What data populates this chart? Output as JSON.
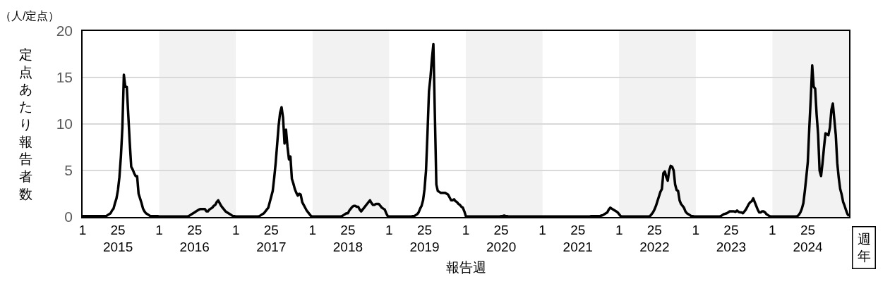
{
  "chart_data": {
    "type": "line",
    "xlabel": "報告週",
    "ylabel": "定点あたり報告者数",
    "annotations": [
      "（人/定点）",
      "週年"
    ],
    "categories": [
      "1",
      null,
      null,
      null,
      null,
      null,
      null,
      null,
      null,
      null,
      null,
      null,
      null,
      null,
      null,
      null,
      null,
      null,
      null,
      null,
      null,
      null,
      null,
      null,
      "25\n2015",
      null,
      null,
      null,
      null,
      null,
      null,
      null,
      null,
      null,
      null,
      null,
      null,
      null,
      null,
      null,
      null,
      null,
      null,
      null,
      null,
      null,
      null,
      null,
      null,
      null,
      null,
      null,
      "1",
      null,
      null,
      null,
      null,
      null,
      null,
      null,
      null,
      null,
      null,
      null,
      null,
      null,
      null,
      null,
      null,
      null,
      null,
      null,
      null,
      null,
      null,
      null,
      "25\n2016",
      null,
      null,
      null,
      null,
      null,
      null,
      null,
      null,
      null,
      null,
      null,
      null,
      null,
      null,
      null,
      null,
      null,
      null,
      null,
      null,
      null,
      null,
      null,
      null,
      null,
      null,
      null,
      "1",
      null,
      null,
      null,
      null,
      null,
      null,
      null,
      null,
      null,
      null,
      null,
      null,
      null,
      null,
      null,
      null,
      null,
      null,
      null,
      null,
      null,
      null,
      null,
      "25\n2017",
      null,
      null,
      null,
      null,
      null,
      null,
      null,
      null,
      null,
      null,
      null,
      null,
      null,
      null,
      null,
      null,
      null,
      null,
      null,
      null,
      null,
      null,
      null,
      null,
      null,
      null,
      null,
      "1",
      null,
      null,
      null,
      null,
      null,
      null,
      null,
      null,
      null,
      null,
      null,
      null,
      null,
      null,
      null,
      null,
      null,
      null,
      null,
      null,
      null,
      null,
      null,
      "25\n2018",
      null,
      null,
      null,
      null,
      null,
      null,
      null,
      null,
      null,
      null,
      null,
      null,
      null,
      null,
      null,
      null,
      null,
      null,
      null,
      null,
      null,
      null,
      null,
      null,
      null,
      null,
      null,
      "1",
      null,
      null,
      null,
      null,
      null,
      null,
      null,
      null,
      null,
      null,
      null,
      null,
      null,
      null,
      null,
      null,
      null,
      null,
      null,
      null,
      null,
      null,
      null,
      "25\n2019",
      null,
      null,
      null,
      null,
      null,
      null,
      null,
      null,
      null,
      null,
      null,
      null,
      null,
      null,
      null,
      null,
      null,
      null,
      null,
      null,
      null,
      null,
      null,
      null,
      null,
      null,
      null,
      "1",
      null,
      null,
      null,
      null,
      null,
      null,
      null,
      null,
      null,
      null,
      null,
      null,
      null,
      null,
      null,
      null,
      null,
      null,
      null,
      null,
      null,
      null,
      null,
      "25\n2020",
      null,
      null,
      null,
      null,
      null,
      null,
      null,
      null,
      null,
      null,
      null,
      null,
      null,
      null,
      null,
      null,
      null,
      null,
      null,
      null,
      null,
      null,
      null,
      null,
      null,
      null,
      null,
      "1",
      null,
      null,
      null,
      null,
      null,
      null,
      null,
      null,
      null,
      null,
      null,
      null,
      null,
      null,
      null,
      null,
      null,
      null,
      null,
      null,
      null,
      null,
      null,
      "25\n2021",
      null,
      null,
      null,
      null,
      null,
      null,
      null,
      null,
      null,
      null,
      null,
      null,
      null,
      null,
      null,
      null,
      null,
      null,
      null,
      null,
      null,
      null,
      null,
      null,
      null,
      null,
      null,
      "1",
      null,
      null,
      null,
      null,
      null,
      null,
      null,
      null,
      null,
      null,
      null,
      null,
      null,
      null,
      null,
      null,
      null,
      null,
      null,
      null,
      null,
      null,
      null,
      "25\n2022",
      null,
      null,
      null,
      null,
      null,
      null,
      null,
      null,
      null,
      null,
      null,
      null,
      null,
      null,
      null,
      null,
      null,
      null,
      null,
      null,
      null,
      null,
      null,
      null,
      null,
      null,
      null,
      "1",
      null,
      null,
      null,
      null,
      null,
      null,
      null,
      null,
      null,
      null,
      null,
      null,
      null,
      null,
      null,
      null,
      null,
      null,
      null,
      null,
      null,
      null,
      null,
      "25\n2023",
      null,
      null,
      null,
      null,
      null,
      null,
      null,
      null,
      null,
      null,
      null,
      null,
      null,
      null,
      null,
      null,
      null,
      null,
      null,
      null,
      null,
      null,
      null,
      null,
      null,
      null,
      null,
      "1",
      null,
      null,
      null,
      null,
      null,
      null,
      null,
      null,
      null,
      null,
      null,
      null,
      null,
      null,
      null,
      null,
      null,
      null,
      null,
      null,
      null,
      null,
      null,
      "25\n2024",
      null,
      null,
      null,
      null,
      null,
      null,
      null,
      null,
      null,
      null,
      null,
      null,
      null,
      null,
      null,
      null,
      null,
      null,
      null,
      null,
      null,
      null,
      null,
      null,
      null,
      null,
      null,
      null
    ],
    "series": [
      {
        "color": "#000000",
        "values": [
          0.1,
          0.1,
          0.1,
          0.1,
          0.1,
          0.1,
          0.1,
          0.1,
          0.1,
          0.1,
          0.1,
          0.1,
          0.1,
          0.1,
          0.1,
          0.1,
          0.1,
          0.2,
          0.3,
          0.4,
          0.7,
          0.9,
          1.5,
          2.0,
          2.9,
          4.3,
          6.5,
          9.6,
          15.3,
          14.0,
          14.0,
          11.0,
          8.0,
          5.4,
          5.1,
          4.7,
          4.4,
          4.4,
          2.5,
          2.0,
          1.5,
          0.9,
          0.6,
          0.4,
          0.3,
          0.2,
          0.1,
          0.1,
          0.1,
          0.1,
          0.1,
          0.1,
          0.05,
          0.05,
          0.05,
          0.05,
          0.05,
          0.05,
          0.05,
          0.05,
          0.05,
          0.05,
          0.05,
          0.05,
          0.05,
          0.05,
          0.05,
          0.05,
          0.05,
          0.05,
          0.05,
          0.05,
          0.1,
          0.2,
          0.3,
          0.4,
          0.5,
          0.6,
          0.7,
          0.8,
          0.85,
          0.85,
          0.85,
          0.85,
          0.6,
          0.6,
          0.8,
          0.9,
          1.0,
          1.2,
          1.3,
          1.6,
          1.8,
          1.5,
          1.2,
          1.0,
          0.8,
          0.6,
          0.5,
          0.4,
          0.3,
          0.2,
          0.1,
          0.1,
          0.05,
          0.05,
          0.05,
          0.05,
          0.05,
          0.05,
          0.05,
          0.05,
          0.05,
          0.05,
          0.05,
          0.05,
          0.05,
          0.05,
          0.05,
          0.05,
          0.1,
          0.2,
          0.3,
          0.4,
          0.6,
          0.8,
          1.0,
          1.6,
          2.2,
          2.8,
          4.2,
          5.8,
          7.8,
          9.8,
          11.2,
          11.8,
          10.7,
          7.9,
          9.4,
          7.6,
          6.2,
          6.5,
          4.1,
          3.6,
          3.0,
          2.6,
          2.3,
          2.5,
          2.4,
          1.6,
          1.3,
          1.0,
          0.7,
          0.5,
          0.3,
          0.1,
          0.05,
          0.05,
          0.05,
          0.05,
          0.05,
          0.05,
          0.05,
          0.05,
          0.05,
          0.05,
          0.05,
          0.05,
          0.05,
          0.05,
          0.05,
          0.05,
          0.05,
          0.05,
          0.05,
          0.05,
          0.1,
          0.2,
          0.3,
          0.4,
          0.4,
          0.7,
          0.9,
          1.1,
          1.2,
          1.2,
          1.1,
          1.1,
          0.8,
          0.6,
          0.8,
          1.0,
          1.2,
          1.4,
          1.6,
          1.8,
          1.5,
          1.3,
          1.3,
          1.4,
          1.4,
          1.4,
          1.2,
          1.0,
          0.9,
          0.8,
          0.4,
          0.1,
          0.05,
          0.05,
          0.05,
          0.05,
          0.05,
          0.05,
          0.05,
          0.05,
          0.05,
          0.05,
          0.05,
          0.05,
          0.05,
          0.05,
          0.05,
          0.05,
          0.1,
          0.1,
          0.2,
          0.3,
          0.5,
          0.9,
          1.2,
          1.8,
          3.0,
          5.0,
          9.0,
          13.5,
          15.0,
          17.0,
          18.6,
          11.0,
          3.5,
          2.8,
          2.7,
          2.6,
          2.6,
          2.6,
          2.6,
          2.5,
          2.4,
          2.1,
          1.8,
          1.8,
          1.9,
          1.7,
          1.6,
          1.4,
          1.3,
          1.1,
          1.0,
          0.6,
          0.1,
          0.05,
          0.05,
          0.05,
          0.05,
          0.05,
          0.05,
          0.05,
          0.05,
          0.05,
          0.05,
          0.05,
          0.05,
          0.05,
          0.05,
          0.05,
          0.05,
          0.05,
          0.05,
          0.05,
          0.05,
          0.05,
          0.05,
          0.05,
          0.1,
          0.1,
          0.15,
          0.1,
          0.1,
          0.05,
          0.05,
          0.05,
          0.05,
          0.05,
          0.05,
          0.05,
          0.05,
          0.05,
          0.05,
          0.05,
          0.05,
          0.05,
          0.05,
          0.05,
          0.05,
          0.05,
          0.05,
          0.05,
          0.05,
          0.05,
          0.05,
          0.05,
          0.05,
          0.05,
          0.05,
          0.05,
          0.05,
          0.05,
          0.05,
          0.05,
          0.05,
          0.05,
          0.05,
          0.05,
          0.05,
          0.05,
          0.05,
          0.05,
          0.05,
          0.05,
          0.05,
          0.05,
          0.05,
          0.05,
          0.05,
          0.05,
          0.05,
          0.05,
          0.05,
          0.05,
          0.05,
          0.05,
          0.05,
          0.05,
          0.05,
          0.1,
          0.1,
          0.1,
          0.1,
          0.1,
          0.1,
          0.1,
          0.15,
          0.2,
          0.3,
          0.4,
          0.5,
          0.8,
          1.0,
          0.9,
          0.8,
          0.7,
          0.6,
          0.5,
          0.3,
          0.1,
          0.05,
          0.05,
          0.05,
          0.05,
          0.05,
          0.05,
          0.05,
          0.05,
          0.05,
          0.05,
          0.05,
          0.05,
          0.05,
          0.05,
          0.05,
          0.05,
          0.05,
          0.05,
          0.05,
          0.1,
          0.3,
          0.5,
          0.8,
          1.2,
          1.7,
          2.2,
          2.7,
          3.0,
          4.7,
          4.9,
          4.3,
          3.9,
          5.0,
          5.5,
          5.4,
          5.0,
          3.5,
          2.9,
          2.8,
          1.8,
          1.4,
          1.2,
          1.0,
          0.6,
          0.4,
          0.3,
          0.2,
          0.1,
          0.1,
          0.05,
          0.05,
          0.05,
          0.05,
          0.05,
          0.05,
          0.05,
          0.05,
          0.05,
          0.05,
          0.05,
          0.05,
          0.05,
          0.05,
          0.05,
          0.05,
          0.05,
          0.05,
          0.1,
          0.2,
          0.3,
          0.35,
          0.4,
          0.5,
          0.6,
          0.6,
          0.6,
          0.6,
          0.55,
          0.7,
          0.55,
          0.5,
          0.5,
          0.4,
          0.6,
          0.8,
          1.1,
          1.4,
          1.6,
          1.7,
          2.0,
          1.6,
          1.2,
          0.8,
          0.5,
          0.5,
          0.6,
          0.6,
          0.5,
          0.3,
          0.2,
          0.1,
          0.05,
          0.05,
          0.05,
          0.05,
          0.05,
          0.05,
          0.05,
          0.05,
          0.05,
          0.05,
          0.05,
          0.05,
          0.05,
          0.05,
          0.05,
          0.05,
          0.05,
          0.05,
          0.1,
          0.25,
          0.5,
          0.9,
          1.5,
          2.8,
          4.3,
          5.9,
          9.5,
          12.7,
          16.3,
          14.0,
          13.8,
          11.0,
          8.9,
          5.0,
          4.4,
          5.8,
          7.5,
          9.0,
          8.9,
          8.8,
          9.6,
          11.5,
          12.2,
          10.5,
          8.8,
          5.8,
          4.2,
          3.0,
          2.4,
          1.6,
          1.2,
          0.7,
          0.3,
          0.1
        ]
      }
    ],
    "ylim": [
      0,
      20
    ],
    "yticks": [
      0,
      5,
      10,
      15,
      20
    ],
    "grid": "y",
    "line_style": "solid",
    "marker": "none"
  }
}
